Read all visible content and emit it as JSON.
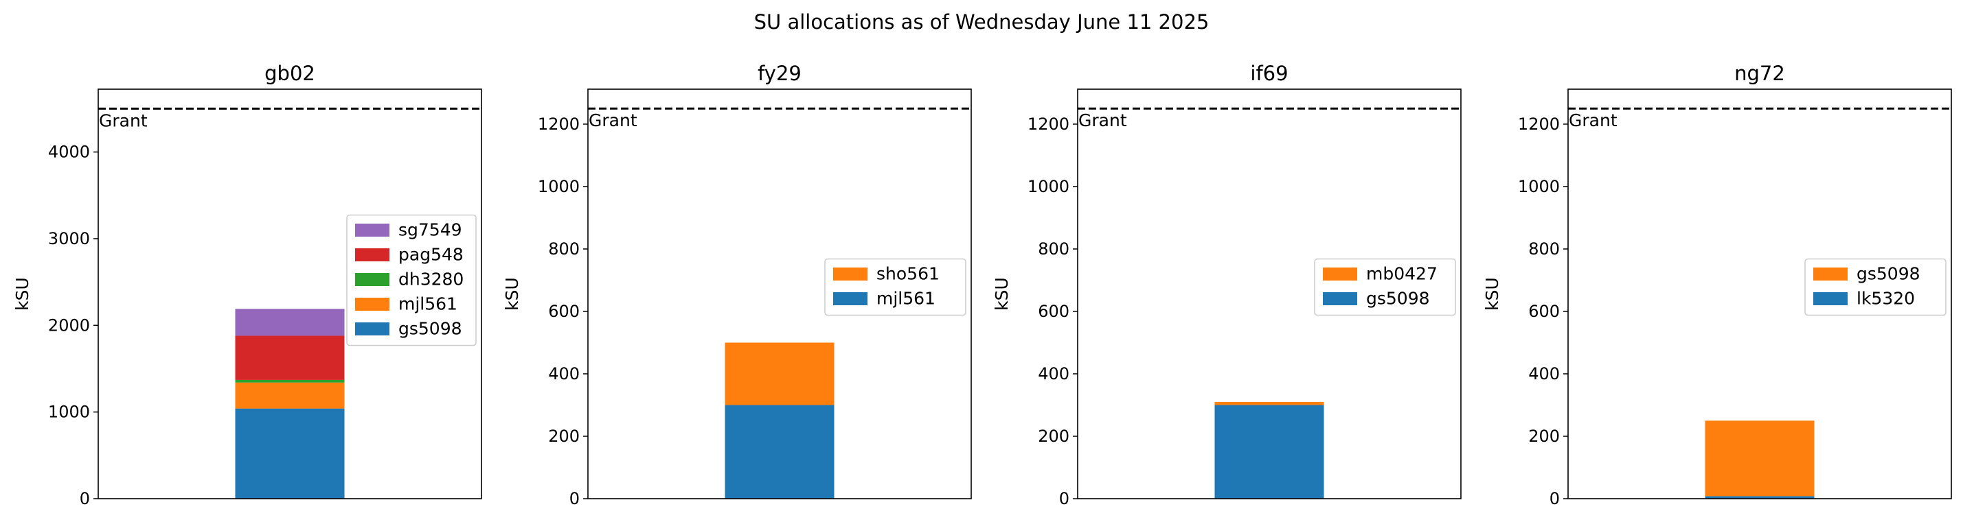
{
  "figure": {
    "title": "SU allocations as of Wednesday June 11 2025"
  },
  "chart_data": [
    {
      "type": "bar",
      "stacked": true,
      "title": "gb02",
      "xlabel": "",
      "ylabel": "kSU",
      "ylim": [
        0,
        4725
      ],
      "yticks": [
        0,
        1000,
        2000,
        3000,
        4000
      ],
      "grid": false,
      "legend_position": "center-right",
      "grant": {
        "label": "Grant",
        "value": 4500
      },
      "series": [
        {
          "name": "gs5098",
          "value": 1040,
          "color": "#1f77b4"
        },
        {
          "name": "mjl561",
          "value": 300,
          "color": "#ff7f0e"
        },
        {
          "name": "dh3280",
          "value": 30,
          "color": "#2ca02c"
        },
        {
          "name": "pag548",
          "value": 510,
          "color": "#d62728"
        },
        {
          "name": "sg7549",
          "value": 310,
          "color": "#9467bd"
        }
      ]
    },
    {
      "type": "bar",
      "stacked": true,
      "title": "fy29",
      "xlabel": "",
      "ylabel": "kSU",
      "ylim": [
        0,
        1312
      ],
      "yticks": [
        0,
        200,
        400,
        600,
        800,
        1000,
        1200
      ],
      "grid": false,
      "legend_position": "center-right",
      "grant": {
        "label": "Grant",
        "value": 1250
      },
      "series": [
        {
          "name": "mjl561",
          "value": 300,
          "color": "#1f77b4"
        },
        {
          "name": "sho561",
          "value": 200,
          "color": "#ff7f0e"
        }
      ]
    },
    {
      "type": "bar",
      "stacked": true,
      "title": "if69",
      "xlabel": "",
      "ylabel": "kSU",
      "ylim": [
        0,
        1312
      ],
      "yticks": [
        0,
        200,
        400,
        600,
        800,
        1000,
        1200
      ],
      "grid": false,
      "legend_position": "center-right",
      "grant": {
        "label": "Grant",
        "value": 1250
      },
      "series": [
        {
          "name": "gs5098",
          "value": 300,
          "color": "#1f77b4"
        },
        {
          "name": "mb0427",
          "value": 10,
          "color": "#ff7f0e"
        }
      ]
    },
    {
      "type": "bar",
      "stacked": true,
      "title": "ng72",
      "xlabel": "",
      "ylabel": "kSU",
      "ylim": [
        0,
        1312
      ],
      "yticks": [
        0,
        200,
        400,
        600,
        800,
        1000,
        1200
      ],
      "grid": false,
      "legend_position": "center-right",
      "grant": {
        "label": "Grant",
        "value": 1250
      },
      "series": [
        {
          "name": "lk5320",
          "value": 8,
          "color": "#1f77b4"
        },
        {
          "name": "gs5098",
          "value": 242,
          "color": "#ff7f0e"
        }
      ]
    }
  ]
}
